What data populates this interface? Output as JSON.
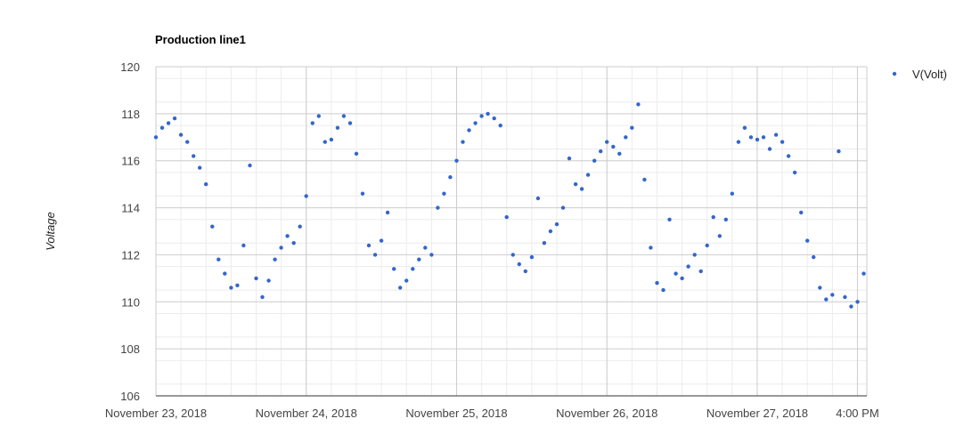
{
  "chart_data": {
    "type": "scatter",
    "title": "Production line1",
    "xlabel": "",
    "ylabel": "Voltage",
    "ylim": [
      106,
      120
    ],
    "xlim": [
      "2018-11-23T00:00",
      "2018-11-27T17:30"
    ],
    "y_ticks": [
      106,
      108,
      110,
      112,
      114,
      116,
      118,
      120
    ],
    "x_ticks": [
      {
        "value": "2018-11-23T00:00",
        "label": "November 23, 2018"
      },
      {
        "value": "2018-11-24T00:00",
        "label": "November 24, 2018"
      },
      {
        "value": "2018-11-25T00:00",
        "label": "November 25, 2018"
      },
      {
        "value": "2018-11-26T00:00",
        "label": "November 26, 2018"
      },
      {
        "value": "2018-11-27T00:00",
        "label": "November 27, 2018"
      },
      {
        "value": "2018-11-27T16:00",
        "label": "4:00 PM"
      }
    ],
    "grid": true,
    "legend_position": "right",
    "series": [
      {
        "name": "V(Volt)",
        "color": "#3366cc",
        "x_unit": "datetime",
        "points": [
          [
            "2018-11-23T00:00",
            117.0
          ],
          [
            "2018-11-23T01:00",
            117.4
          ],
          [
            "2018-11-23T02:00",
            117.6
          ],
          [
            "2018-11-23T03:00",
            117.8
          ],
          [
            "2018-11-23T04:00",
            117.1
          ],
          [
            "2018-11-23T05:00",
            116.8
          ],
          [
            "2018-11-23T06:00",
            116.2
          ],
          [
            "2018-11-23T07:00",
            115.7
          ],
          [
            "2018-11-23T08:00",
            115.0
          ],
          [
            "2018-11-23T09:00",
            113.2
          ],
          [
            "2018-11-23T10:00",
            111.8
          ],
          [
            "2018-11-23T11:00",
            111.2
          ],
          [
            "2018-11-23T12:00",
            110.6
          ],
          [
            "2018-11-23T13:00",
            110.7
          ],
          [
            "2018-11-23T14:00",
            112.4
          ],
          [
            "2018-11-23T15:00",
            115.8
          ],
          [
            "2018-11-23T16:00",
            111.0
          ],
          [
            "2018-11-23T17:00",
            110.2
          ],
          [
            "2018-11-23T18:00",
            110.9
          ],
          [
            "2018-11-23T19:00",
            111.8
          ],
          [
            "2018-11-23T20:00",
            112.3
          ],
          [
            "2018-11-23T21:00",
            112.8
          ],
          [
            "2018-11-23T22:00",
            112.5
          ],
          [
            "2018-11-23T23:00",
            113.2
          ],
          [
            "2018-11-24T00:00",
            114.5
          ],
          [
            "2018-11-24T01:00",
            117.6
          ],
          [
            "2018-11-24T02:00",
            117.9
          ],
          [
            "2018-11-24T03:00",
            116.8
          ],
          [
            "2018-11-24T04:00",
            116.9
          ],
          [
            "2018-11-24T05:00",
            117.4
          ],
          [
            "2018-11-24T06:00",
            117.9
          ],
          [
            "2018-11-24T07:00",
            117.6
          ],
          [
            "2018-11-24T08:00",
            116.3
          ],
          [
            "2018-11-24T09:00",
            114.6
          ],
          [
            "2018-11-24T10:00",
            112.4
          ],
          [
            "2018-11-24T11:00",
            112.0
          ],
          [
            "2018-11-24T12:00",
            112.6
          ],
          [
            "2018-11-24T13:00",
            113.8
          ],
          [
            "2018-11-24T14:00",
            111.4
          ],
          [
            "2018-11-24T15:00",
            110.6
          ],
          [
            "2018-11-24T16:00",
            110.9
          ],
          [
            "2018-11-24T17:00",
            111.4
          ],
          [
            "2018-11-24T18:00",
            111.8
          ],
          [
            "2018-11-24T19:00",
            112.3
          ],
          [
            "2018-11-24T20:00",
            112.0
          ],
          [
            "2018-11-24T21:00",
            114.0
          ],
          [
            "2018-11-24T22:00",
            114.6
          ],
          [
            "2018-11-24T23:00",
            115.3
          ],
          [
            "2018-11-25T00:00",
            116.0
          ],
          [
            "2018-11-25T01:00",
            116.8
          ],
          [
            "2018-11-25T02:00",
            117.3
          ],
          [
            "2018-11-25T03:00",
            117.6
          ],
          [
            "2018-11-25T04:00",
            117.9
          ],
          [
            "2018-11-25T05:00",
            118.0
          ],
          [
            "2018-11-25T06:00",
            117.8
          ],
          [
            "2018-11-25T07:00",
            117.5
          ],
          [
            "2018-11-25T08:00",
            113.6
          ],
          [
            "2018-11-25T09:00",
            112.0
          ],
          [
            "2018-11-25T10:00",
            111.6
          ],
          [
            "2018-11-25T11:00",
            111.3
          ],
          [
            "2018-11-25T12:00",
            111.9
          ],
          [
            "2018-11-25T13:00",
            114.4
          ],
          [
            "2018-11-25T14:00",
            112.5
          ],
          [
            "2018-11-25T15:00",
            113.0
          ],
          [
            "2018-11-25T16:00",
            113.3
          ],
          [
            "2018-11-25T17:00",
            114.0
          ],
          [
            "2018-11-25T18:00",
            116.1
          ],
          [
            "2018-11-25T19:00",
            115.0
          ],
          [
            "2018-11-25T20:00",
            114.8
          ],
          [
            "2018-11-25T21:00",
            115.4
          ],
          [
            "2018-11-25T22:00",
            116.0
          ],
          [
            "2018-11-25T23:00",
            116.4
          ],
          [
            "2018-11-26T00:00",
            116.8
          ],
          [
            "2018-11-26T01:00",
            116.6
          ],
          [
            "2018-11-26T02:00",
            116.3
          ],
          [
            "2018-11-26T03:00",
            117.0
          ],
          [
            "2018-11-26T04:00",
            117.4
          ],
          [
            "2018-11-26T05:00",
            118.4
          ],
          [
            "2018-11-26T06:00",
            115.2
          ],
          [
            "2018-11-26T07:00",
            112.3
          ],
          [
            "2018-11-26T08:00",
            110.8
          ],
          [
            "2018-11-26T09:00",
            110.5
          ],
          [
            "2018-11-26T10:00",
            113.5
          ],
          [
            "2018-11-26T11:00",
            111.2
          ],
          [
            "2018-11-26T12:00",
            111.0
          ],
          [
            "2018-11-26T13:00",
            111.5
          ],
          [
            "2018-11-26T14:00",
            112.0
          ],
          [
            "2018-11-26T15:00",
            111.3
          ],
          [
            "2018-11-26T16:00",
            112.4
          ],
          [
            "2018-11-26T17:00",
            113.6
          ],
          [
            "2018-11-26T18:00",
            112.8
          ],
          [
            "2018-11-26T19:00",
            113.5
          ],
          [
            "2018-11-26T20:00",
            114.6
          ],
          [
            "2018-11-26T21:00",
            116.8
          ],
          [
            "2018-11-26T22:00",
            117.4
          ],
          [
            "2018-11-26T23:00",
            117.0
          ],
          [
            "2018-11-27T00:00",
            116.9
          ],
          [
            "2018-11-27T01:00",
            117.0
          ],
          [
            "2018-11-27T02:00",
            116.5
          ],
          [
            "2018-11-27T03:00",
            117.1
          ],
          [
            "2018-11-27T04:00",
            116.8
          ],
          [
            "2018-11-27T05:00",
            116.2
          ],
          [
            "2018-11-27T06:00",
            115.5
          ],
          [
            "2018-11-27T07:00",
            113.8
          ],
          [
            "2018-11-27T08:00",
            112.6
          ],
          [
            "2018-11-27T09:00",
            111.9
          ],
          [
            "2018-11-27T10:00",
            110.6
          ],
          [
            "2018-11-27T11:00",
            110.1
          ],
          [
            "2018-11-27T12:00",
            110.3
          ],
          [
            "2018-11-27T13:00",
            116.4
          ],
          [
            "2018-11-27T14:00",
            110.2
          ],
          [
            "2018-11-27T15:00",
            109.8
          ],
          [
            "2018-11-27T16:00",
            110.0
          ],
          [
            "2018-11-27T17:00",
            111.2
          ]
        ]
      }
    ]
  }
}
